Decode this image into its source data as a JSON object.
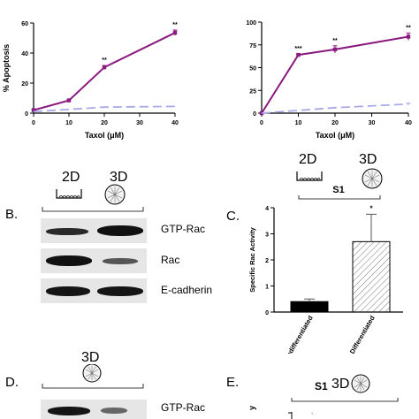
{
  "chart_data": [
    {
      "type": "line",
      "xlabel": "Taxol (μM)",
      "ylabel": "% Apoptosis",
      "x": [
        0,
        10,
        20,
        40
      ],
      "xticks": [
        "0",
        "10",
        "20",
        "30",
        "40"
      ],
      "yticks": [
        "0",
        "20",
        "40",
        "60"
      ],
      "xlim": [
        0,
        40
      ],
      "ylim": [
        0,
        60
      ],
      "series": [
        {
          "color": "#8b1a7f",
          "style": "solid",
          "values": [
            2,
            8.5,
            30.5,
            53.5
          ],
          "errors": [
            0.5,
            0.8,
            1.2,
            1.8
          ],
          "significance": [
            "",
            "",
            "**",
            "**"
          ]
        },
        {
          "color": "#a9a9e8",
          "style": "dashed",
          "values": [
            1,
            2.5,
            4,
            4.5
          ],
          "errors": [
            0,
            0,
            0,
            0
          ]
        }
      ]
    },
    {
      "type": "line",
      "xlabel": "Taxol (μM)",
      "ylabel": "",
      "x": [
        0,
        10,
        20,
        40
      ],
      "xticks": [
        "0",
        "10",
        "20",
        "30",
        "40"
      ],
      "yticks": [
        "0",
        "25",
        "50",
        "75",
        "100"
      ],
      "xlim": [
        0,
        40
      ],
      "ylim": [
        0,
        100
      ],
      "series": [
        {
          "color": "#8b1a7f",
          "style": "solid",
          "values": [
            0,
            64,
            70,
            84
          ],
          "errors": [
            0,
            1,
            4,
            4
          ],
          "significance": [
            "",
            "***",
            "**",
            "**"
          ]
        },
        {
          "color": "#a9a9e8",
          "style": "dashed",
          "values": [
            0,
            3,
            6,
            10
          ],
          "errors": [
            0,
            0,
            0,
            1
          ]
        }
      ]
    },
    {
      "type": "bar",
      "ylabel": "Specific Rac Activity",
      "categories": [
        "2D Undifferentiated",
        "3D Differentiated"
      ],
      "values": [
        0.4,
        2.7
      ],
      "errors": [
        0.1,
        1.05
      ],
      "yticks": [
        "0",
        "1",
        "2",
        "3",
        "4"
      ],
      "ylim": [
        0,
        4
      ],
      "group_label": "S1",
      "significance": "*"
    }
  ],
  "panels": {
    "b": {
      "letter": "B.",
      "label_2d": "2D",
      "label_3d": "3D",
      "rows": [
        "GTP-Rac",
        "Rac",
        "E-cadherin"
      ]
    },
    "c": {
      "letter": "C.",
      "label_2d": "2D",
      "label_3d": "3D"
    },
    "d": {
      "letter": "D.",
      "label_3d": "3D",
      "rows": [
        "GTP-Rac"
      ]
    },
    "e": {
      "letter": "E.",
      "group_label": "S1",
      "label_3d": "3D",
      "ylabel_fragment": "y"
    }
  }
}
